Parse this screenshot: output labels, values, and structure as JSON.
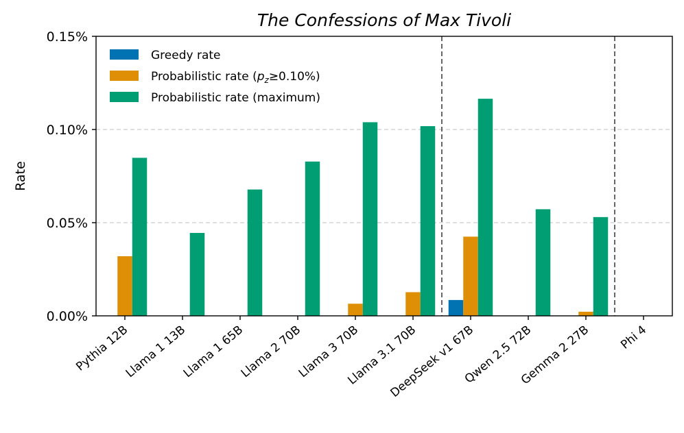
{
  "chart_data": {
    "type": "bar",
    "title": "The Confessions of Max Tivoli",
    "xlabel": "",
    "ylabel": "Rate",
    "ylim": [
      0,
      0.15
    ],
    "yticks": [
      {
        "value": 0,
        "label": "0.00%"
      },
      {
        "value": 0.05,
        "label": "0.05%"
      },
      {
        "value": 0.1,
        "label": "0.10%"
      },
      {
        "value": 0.15,
        "label": "0.15%"
      }
    ],
    "grid": "horizontal dashed",
    "legend_position": "top-left",
    "categories": [
      "Pythia 12B",
      "Llama 1 13B",
      "Llama 1 65B",
      "Llama 2 70B",
      "Llama 3 70B",
      "Llama 3.1 70B",
      "DeepSeek v1 67B",
      "Qwen 2.5 72B",
      "Gemma 2 27B",
      "Phi 4"
    ],
    "group_separators_after": [
      "Llama 3.1 70B",
      "Gemma 2 27B"
    ],
    "series": [
      {
        "name": "Greedy rate",
        "color": "#0173b2",
        "values": [
          0,
          0,
          0,
          0,
          0,
          0,
          0.0085,
          0,
          0,
          0
        ]
      },
      {
        "name_prefix": "Probabilistic rate (",
        "name_symbol": "p",
        "name_subscript": "z",
        "name_suffix": "≥0.10%)",
        "color": "#de8f05",
        "values": [
          0.032,
          0,
          0,
          0,
          0.0065,
          0.0127,
          0.0425,
          0,
          0.0022,
          0
        ]
      },
      {
        "name": "Probabilistic rate (maximum)",
        "color": "#029e73",
        "values": [
          0.0848,
          0.0445,
          0.0678,
          0.0828,
          0.1039,
          0.1018,
          0.1165,
          0.0572,
          0.053,
          0
        ]
      }
    ]
  }
}
